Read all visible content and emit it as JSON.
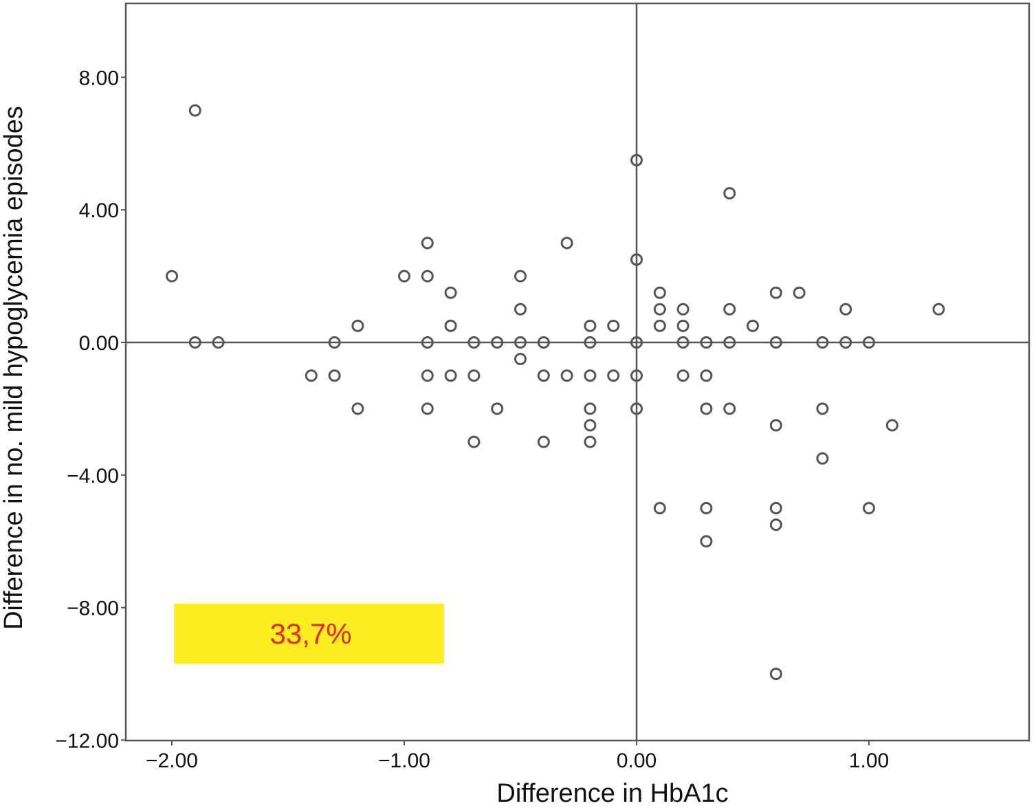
{
  "chart_data": {
    "type": "scatter",
    "title": "",
    "xlabel": "Difference in HbA1c",
    "ylabel": "Difference in no. mild hypoglycemia episodes",
    "xlim": [
      -2.2,
      1.7
    ],
    "ylim": [
      -12,
      10
    ],
    "x_ticks": [
      -2,
      -1,
      0,
      1
    ],
    "x_tick_labels": [
      "−2.00",
      "−1.00",
      "0.00",
      "1.00"
    ],
    "y_ticks": [
      8,
      4,
      0,
      -4,
      -8,
      -12
    ],
    "y_tick_labels": [
      "8.00",
      "4.00",
      "0.00",
      "−4.00",
      "−8.00",
      "−12.00"
    ],
    "reference_lines": {
      "x": 0,
      "y": 0
    },
    "grid": false,
    "legend": null,
    "marker": "open-circle",
    "marker_color": "#555555",
    "annotation": {
      "text": "33,7%",
      "background": "#fcee21",
      "text_color": "#e8281e",
      "placement": "bottom-left"
    },
    "points": [
      {
        "x": -1.9,
        "y": 7
      },
      {
        "x": -2.0,
        "y": 2
      },
      {
        "x": -1.9,
        "y": 0
      },
      {
        "x": -1.8,
        "y": 0
      },
      {
        "x": -1.4,
        "y": -1
      },
      {
        "x": -1.3,
        "y": 0
      },
      {
        "x": -1.3,
        "y": -1
      },
      {
        "x": -1.2,
        "y": 0.5
      },
      {
        "x": -1.2,
        "y": -2
      },
      {
        "x": -1.0,
        "y": 2
      },
      {
        "x": -0.9,
        "y": 3
      },
      {
        "x": -0.9,
        "y": 2
      },
      {
        "x": -0.9,
        "y": 0
      },
      {
        "x": -0.9,
        "y": -1
      },
      {
        "x": -0.9,
        "y": -2
      },
      {
        "x": -0.8,
        "y": 1.5
      },
      {
        "x": -0.8,
        "y": 0.5
      },
      {
        "x": -0.8,
        "y": -1
      },
      {
        "x": -0.7,
        "y": 0
      },
      {
        "x": -0.7,
        "y": -1
      },
      {
        "x": -0.7,
        "y": -3
      },
      {
        "x": -0.6,
        "y": 0
      },
      {
        "x": -0.6,
        "y": -2
      },
      {
        "x": -0.5,
        "y": 2
      },
      {
        "x": -0.5,
        "y": 1
      },
      {
        "x": -0.5,
        "y": 0
      },
      {
        "x": -0.5,
        "y": -0.5
      },
      {
        "x": -0.4,
        "y": 0
      },
      {
        "x": -0.4,
        "y": -1
      },
      {
        "x": -0.4,
        "y": -3
      },
      {
        "x": -0.3,
        "y": 3
      },
      {
        "x": -0.3,
        "y": -1
      },
      {
        "x": -0.2,
        "y": 0.5
      },
      {
        "x": -0.2,
        "y": 0
      },
      {
        "x": -0.2,
        "y": -1
      },
      {
        "x": -0.2,
        "y": -2
      },
      {
        "x": -0.2,
        "y": -2.5
      },
      {
        "x": -0.2,
        "y": -3
      },
      {
        "x": -0.1,
        "y": 0.5
      },
      {
        "x": -0.1,
        "y": -1
      },
      {
        "x": 0.0,
        "y": 5.5
      },
      {
        "x": 0.0,
        "y": 2.5
      },
      {
        "x": 0.0,
        "y": 0
      },
      {
        "x": 0.0,
        "y": -1
      },
      {
        "x": 0.0,
        "y": -2
      },
      {
        "x": 0.1,
        "y": 1.5
      },
      {
        "x": 0.1,
        "y": 1
      },
      {
        "x": 0.1,
        "y": 0.5
      },
      {
        "x": 0.1,
        "y": -5
      },
      {
        "x": 0.2,
        "y": 1
      },
      {
        "x": 0.2,
        "y": 0.5
      },
      {
        "x": 0.2,
        "y": 0
      },
      {
        "x": 0.2,
        "y": -1
      },
      {
        "x": 0.3,
        "y": 0
      },
      {
        "x": 0.3,
        "y": -1
      },
      {
        "x": 0.3,
        "y": -2
      },
      {
        "x": 0.3,
        "y": -5
      },
      {
        "x": 0.3,
        "y": -6
      },
      {
        "x": 0.4,
        "y": 4.5
      },
      {
        "x": 0.4,
        "y": 1
      },
      {
        "x": 0.4,
        "y": 0
      },
      {
        "x": 0.4,
        "y": -2
      },
      {
        "x": 0.5,
        "y": 0.5
      },
      {
        "x": 0.6,
        "y": 1.5
      },
      {
        "x": 0.6,
        "y": 0
      },
      {
        "x": 0.6,
        "y": -2.5
      },
      {
        "x": 0.6,
        "y": -5
      },
      {
        "x": 0.6,
        "y": -5.5
      },
      {
        "x": 0.6,
        "y": -10
      },
      {
        "x": 0.7,
        "y": 1.5
      },
      {
        "x": 0.8,
        "y": 0
      },
      {
        "x": 0.8,
        "y": -2
      },
      {
        "x": 0.8,
        "y": -3.5
      },
      {
        "x": 0.9,
        "y": 1
      },
      {
        "x": 0.9,
        "y": 0
      },
      {
        "x": 1.0,
        "y": 0
      },
      {
        "x": 1.0,
        "y": -5
      },
      {
        "x": 1.1,
        "y": -2.5
      },
      {
        "x": 1.3,
        "y": 1
      }
    ]
  }
}
